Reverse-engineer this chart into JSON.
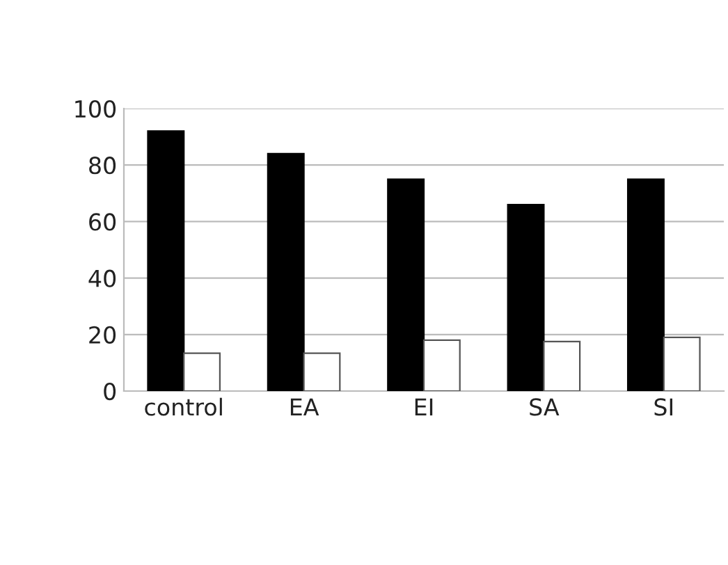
{
  "chart_data": {
    "type": "bar",
    "categories": [
      "control",
      "EA",
      "EI",
      "SA",
      "SI"
    ],
    "series": [
      {
        "color": "#000000",
        "values": [
          92,
          84,
          75,
          66,
          75
        ]
      },
      {
        "color": "#ffffff",
        "values": [
          13.4,
          13.4,
          18,
          17.5,
          19
        ]
      }
    ],
    "ylim": [
      0,
      100
    ],
    "yticks": [
      0,
      20,
      40,
      60,
      80,
      100
    ],
    "grid": "y",
    "legend": false
  }
}
